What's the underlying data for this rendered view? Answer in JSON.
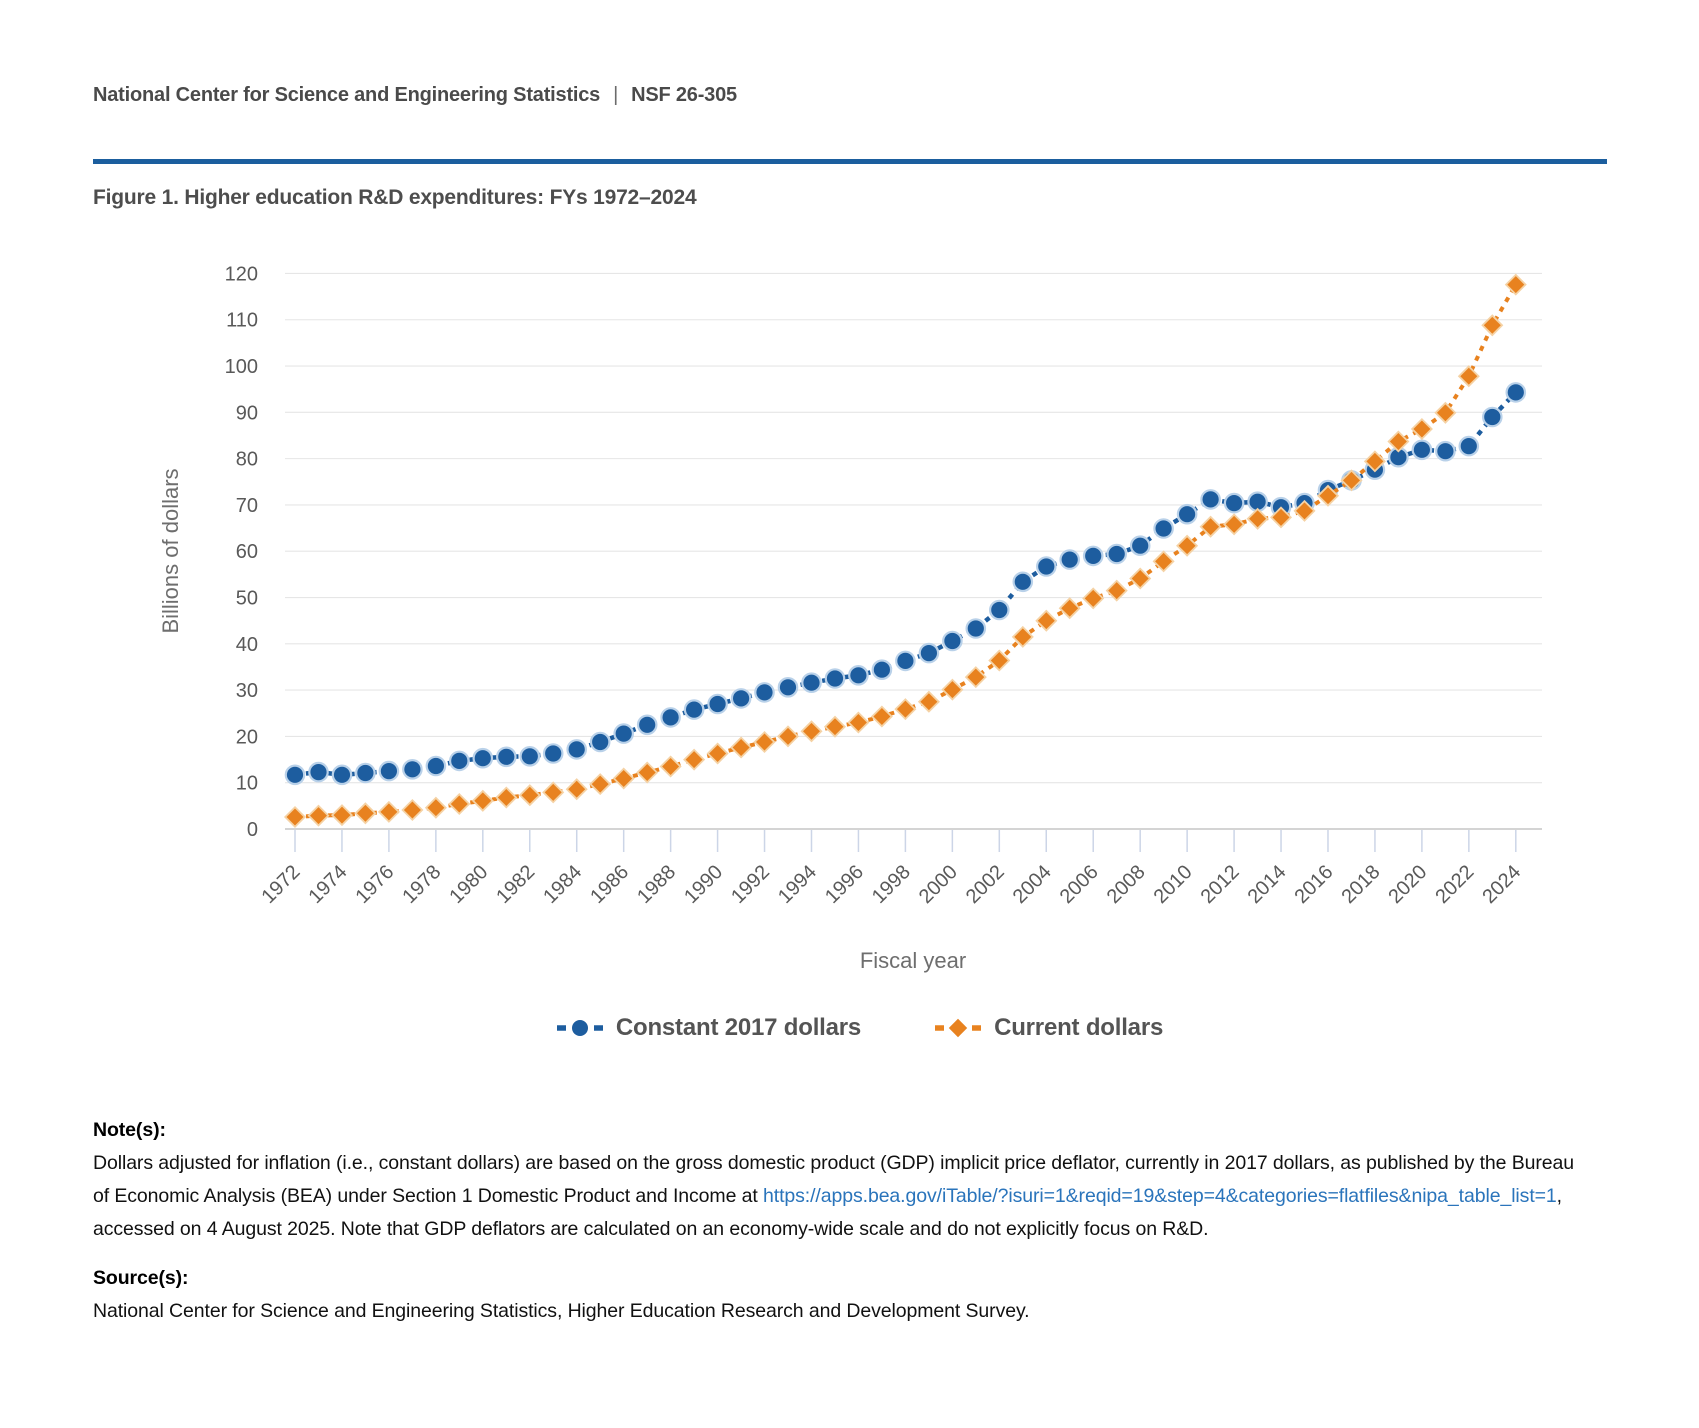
{
  "header": {
    "org": "National Center for Science and Engineering Statistics",
    "separator": "|",
    "report_number": "NSF 26-305"
  },
  "figure_title": "Figure 1. Higher education R&D expenditures: FYs 1972–2024",
  "colors": {
    "rule_blue": "#1b5e9e",
    "constant_series": "#1d5d9f",
    "constant_halo": "#b9d1e9",
    "current_series": "#e8821f",
    "current_halo": "#f5d2a4",
    "gridline": "#e6e6e6",
    "axis_line": "#c6c6c6",
    "tick_mark": "#ccd5e7",
    "link_blue": "#2a74bb"
  },
  "chart_data": {
    "type": "line",
    "title": "Figure 1. Higher education R&D expenditures: FYs 1972–2024",
    "xlabel": "Fiscal year",
    "ylabel": "Billions of dollars",
    "ylim": [
      0,
      120
    ],
    "ytick_step": 10,
    "yticks": [
      0,
      10,
      20,
      30,
      40,
      50,
      60,
      70,
      80,
      90,
      100,
      110,
      120
    ],
    "grid": true,
    "legend_position": "bottom",
    "years": [
      1972,
      1973,
      1974,
      1975,
      1976,
      1977,
      1978,
      1979,
      1980,
      1981,
      1982,
      1983,
      1984,
      1985,
      1986,
      1987,
      1988,
      1989,
      1990,
      1991,
      1992,
      1993,
      1994,
      1995,
      1996,
      1997,
      1998,
      1999,
      2000,
      2001,
      2002,
      2003,
      2004,
      2005,
      2006,
      2007,
      2008,
      2009,
      2010,
      2011,
      2012,
      2013,
      2014,
      2015,
      2016,
      2017,
      2018,
      2019,
      2020,
      2021,
      2022,
      2023,
      2024
    ],
    "xtick_labels": [
      "1972",
      "1974",
      "1976",
      "1978",
      "1980",
      "1982",
      "1984",
      "1986",
      "1988",
      "1990",
      "1992",
      "1994",
      "1996",
      "1998",
      "2000",
      "2002",
      "2004",
      "2006",
      "2008",
      "2010",
      "2012",
      "2014",
      "2016",
      "2018",
      "2020",
      "2022",
      "2024"
    ],
    "series": [
      {
        "name": "Constant 2017 dollars",
        "marker": "circle",
        "color": "#1d5d9f",
        "halo": "#b9d1e9",
        "values": [
          11.7,
          12.3,
          11.7,
          12.1,
          12.5,
          12.9,
          13.6,
          14.7,
          15.3,
          15.6,
          15.7,
          16.3,
          17.2,
          18.8,
          20.6,
          22.5,
          24.1,
          25.8,
          27.0,
          28.2,
          29.5,
          30.6,
          31.6,
          32.5,
          33.2,
          34.4,
          36.3,
          38.0,
          40.6,
          43.3,
          47.3,
          53.4,
          56.7,
          58.2,
          59.0,
          59.4,
          61.2,
          64.9,
          68.0,
          71.2,
          70.4,
          70.7,
          69.5,
          70.4,
          73.2,
          75.3,
          77.6,
          80.3,
          81.9,
          81.6,
          82.7,
          89.0,
          94.3
        ]
      },
      {
        "name": "Current dollars",
        "marker": "diamond",
        "color": "#e8821f",
        "halo": "#f5d2a4",
        "values": [
          2.6,
          2.9,
          3.0,
          3.4,
          3.7,
          4.1,
          4.6,
          5.4,
          6.1,
          6.8,
          7.3,
          7.9,
          8.6,
          9.7,
          10.9,
          12.2,
          13.5,
          15.0,
          16.3,
          17.6,
          18.8,
          20.0,
          21.1,
          22.1,
          23.0,
          24.3,
          25.9,
          27.5,
          30.1,
          32.8,
          36.4,
          41.5,
          45.0,
          47.7,
          49.8,
          51.5,
          54.1,
          57.8,
          61.2,
          65.3,
          65.8,
          67.0,
          67.3,
          68.7,
          72.0,
          75.3,
          79.4,
          83.7,
          86.4,
          89.9,
          97.8,
          108.8,
          117.6
        ]
      }
    ]
  },
  "notes": {
    "heading": "Note(s):",
    "before_link": "Dollars adjusted for inflation (i.e., constant dollars) are based on the gross domestic product (GDP) implicit price deflator, currently in 2017 dollars, as published by the Bureau of Economic Analysis (BEA) under Section 1 Domestic Product and Income at ",
    "link": "https://apps.bea.gov/iTable/?isuri=1&reqid=19&step=4&categories=flatfiles&nipa_table_list=1",
    "after_link": ", accessed on 4 August 2025. Note that GDP deflators are calculated on an economy-wide scale and do not explicitly focus on R&D."
  },
  "source": {
    "heading": "Source(s):",
    "text": "National Center for Science and Engineering Statistics, Higher Education Research and Development Survey."
  }
}
